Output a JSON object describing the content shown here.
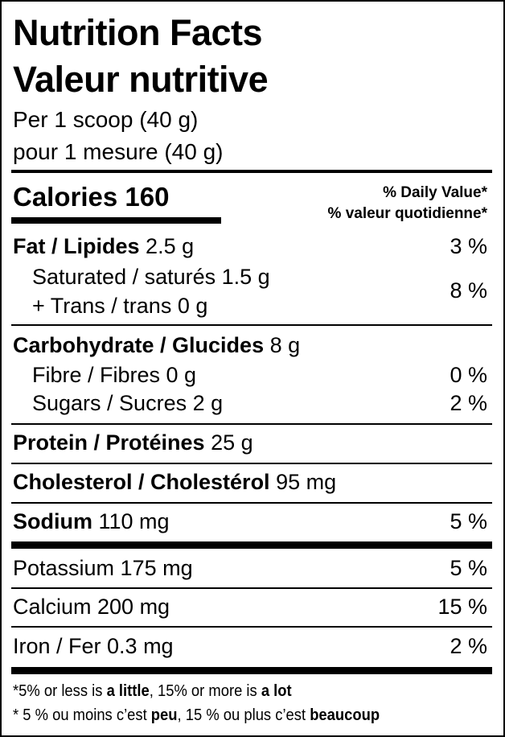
{
  "header": {
    "title_en": "Nutrition Facts",
    "title_fr": "Valeur nutritive",
    "serving_en": "Per 1 scoop (40 g)",
    "serving_fr": "pour 1 mesure (40 g)"
  },
  "calories": {
    "label": "Calories",
    "value": "160"
  },
  "daily_value": {
    "en": "% Daily Value*",
    "fr": "% valeur quotidienne*"
  },
  "nutrients": {
    "fat": {
      "label": "Fat / Lipides",
      "amount": "2.5 g",
      "pct": "3 %"
    },
    "saturated": {
      "label": "Saturated / saturés 1.5 g"
    },
    "trans": {
      "label": "+ Trans / trans 0 g",
      "pct": "8 %"
    },
    "carbohydrate": {
      "label": "Carbohydrate / Glucides",
      "amount": "8 g"
    },
    "fibre": {
      "label": "Fibre / Fibres 0 g",
      "pct": "0 %"
    },
    "sugars": {
      "label": "Sugars / Sucres 2 g",
      "pct": "2 %"
    },
    "protein": {
      "label": "Protein / Protéines",
      "amount": "25 g"
    },
    "cholesterol": {
      "label": "Cholesterol / Cholestérol",
      "amount": "95 mg"
    },
    "sodium": {
      "label": "Sodium",
      "amount": "110 mg",
      "pct": "5 %"
    },
    "potassium": {
      "label": "Potassium 175 mg",
      "pct": "5 %"
    },
    "calcium": {
      "label": "Calcium 200 mg",
      "pct": "15 %"
    },
    "iron": {
      "label": "Iron / Fer 0.3 mg",
      "pct": "2 %"
    }
  },
  "footnote": {
    "en": {
      "a": "*5% or less is ",
      "b": "a little",
      "c": ", 15% or more is ",
      "d": "a lot"
    },
    "fr": {
      "a": "* 5 % ou moins c’est ",
      "b": "peu",
      "c": ", 15 % ou plus c’est ",
      "d": "beaucoup"
    }
  }
}
